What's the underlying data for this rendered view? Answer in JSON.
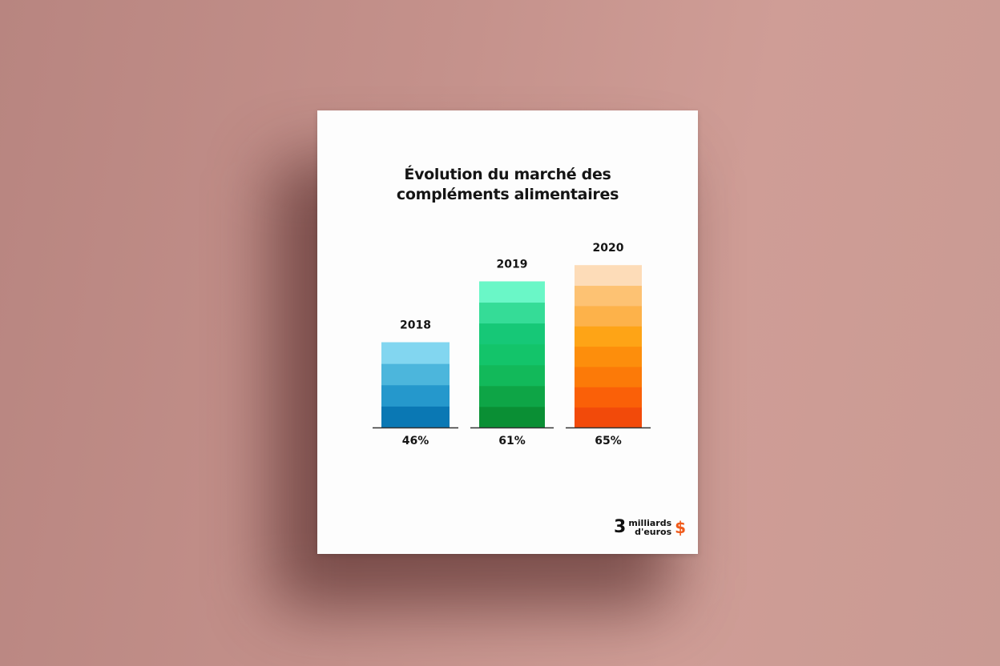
{
  "chart_data": {
    "type": "bar",
    "title": "Évolution du marché des compléments alimentaires",
    "title_lines": [
      "Évolution du marché des",
      "compléments alimentaires"
    ],
    "categories": [
      "2018",
      "2019",
      "2020"
    ],
    "values": [
      46,
      61,
      65
    ],
    "value_labels": [
      "46%",
      "61%",
      "65%"
    ],
    "ylim": [
      25,
      66
    ],
    "grid": false,
    "bar_bands": [
      [
        "#0a78b4",
        "#2598cc",
        "#4cb6dc",
        "#82d6f0"
      ],
      [
        "#0a8f34",
        "#0ea546",
        "#12b95a",
        "#13c46a",
        "#16c877",
        "#35dc97",
        "#6af7c7"
      ],
      [
        "#f24a0a",
        "#fa6008",
        "#fc7a08",
        "#fd8e0c",
        "#fea416",
        "#fdb24a",
        "#fdc273",
        "#fddcb8"
      ]
    ]
  },
  "footer": {
    "number": "3",
    "line1": "milliards",
    "line2": "d'euros",
    "symbol": "$"
  }
}
